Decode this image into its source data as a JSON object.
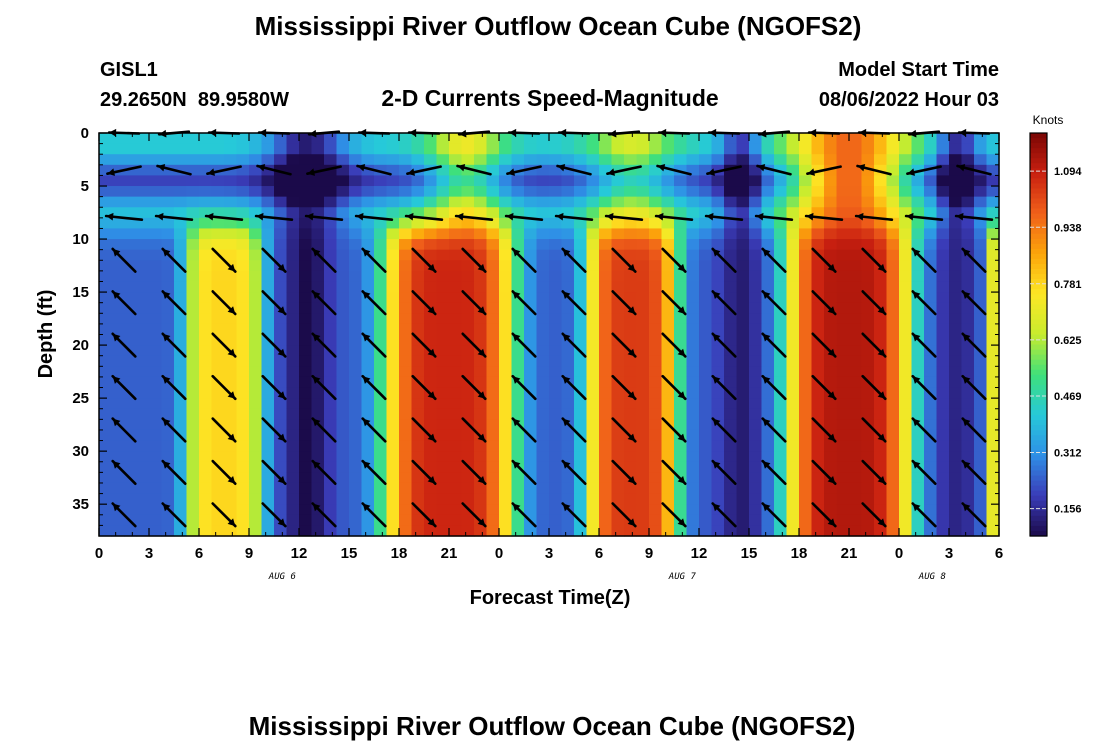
{
  "page": {
    "title": "Mississippi River Outflow Ocean Cube (NGOFS2)",
    "station_id": "GISL1",
    "station_coords": "29.2650N  89.9580W",
    "subtitle": "2-D Currents Speed-Magnitude",
    "model_start_label": "Model Start Time",
    "model_start_value": "08/06/2022 Hour 03",
    "second_title": "Mississippi River Outflow Ocean Cube (NGOFS2)"
  },
  "chart_data": {
    "type": "heatmap",
    "xlabel": "Forecast Time(Z)",
    "ylabel": "Depth (ft)",
    "colorbar_label": "Knots",
    "x_range_hours": [
      0,
      54
    ],
    "y_range_ft": [
      0,
      38
    ],
    "y_inverted": true,
    "x_ticks": [
      "0",
      "3",
      "6",
      "9",
      "12",
      "15",
      "18",
      "21",
      "0",
      "3",
      "6",
      "9",
      "12",
      "15",
      "18",
      "21",
      "0",
      "3",
      "6"
    ],
    "y_ticks": [
      "0",
      "5",
      "10",
      "15",
      "20",
      "25",
      "30",
      "35"
    ],
    "date_labels": [
      {
        "hour": 11,
        "text": "AUG 6"
      },
      {
        "hour": 35,
        "text": "AUG 7"
      },
      {
        "hour": 50,
        "text": "AUG 8"
      }
    ],
    "colorbar_range": [
      0.08,
      1.2
    ],
    "colorbar_ticks": [
      "0.156",
      "0.312",
      "0.469",
      "0.625",
      "0.781",
      "0.938",
      "1.094"
    ],
    "colorbar_tick_values": [
      0.156,
      0.312,
      0.469,
      0.625,
      0.781,
      0.938,
      1.094
    ],
    "colormap": [
      "#1b0a4a",
      "#3a3cb8",
      "#2f8fe6",
      "#26c9d9",
      "#3fe07a",
      "#c8ec2e",
      "#fde725",
      "#fca50a",
      "#f0601a",
      "#c92010",
      "#7a0604"
    ],
    "speed_peaks": [
      {
        "center_hour": 7.5,
        "width_hours": 2.4,
        "max_knots": 0.78
      },
      {
        "center_hour": 21.0,
        "width_hours": 4.0,
        "max_knots": 1.08
      },
      {
        "center_hour": 32.0,
        "width_hours": 2.8,
        "max_knots": 1.04
      },
      {
        "center_hour": 45.0,
        "width_hours": 3.8,
        "max_knots": 1.12
      },
      {
        "center_hour": 54.0,
        "width_hours": 0.9,
        "max_knots": 0.72
      }
    ],
    "speed_lows": [
      {
        "center_hour": 12.5,
        "max_knots": 0.08
      },
      {
        "center_hour": 38.5,
        "max_knots": 0.12
      },
      {
        "center_hour": 51.5,
        "max_knots": 0.14
      }
    ],
    "surface_layer_depth_ft": 8,
    "vector_columns_hours": [
      1.5,
      4.5,
      7.5,
      10.5,
      13.5,
      16.5,
      19.5,
      22.5,
      25.5,
      28.5,
      31.5,
      34.5,
      37.5,
      40.5,
      43.5,
      46.5,
      49.5,
      52.5
    ],
    "vector_rows_ft": [
      0,
      3.5,
      8,
      12,
      16,
      20,
      24,
      28,
      32,
      36
    ]
  }
}
